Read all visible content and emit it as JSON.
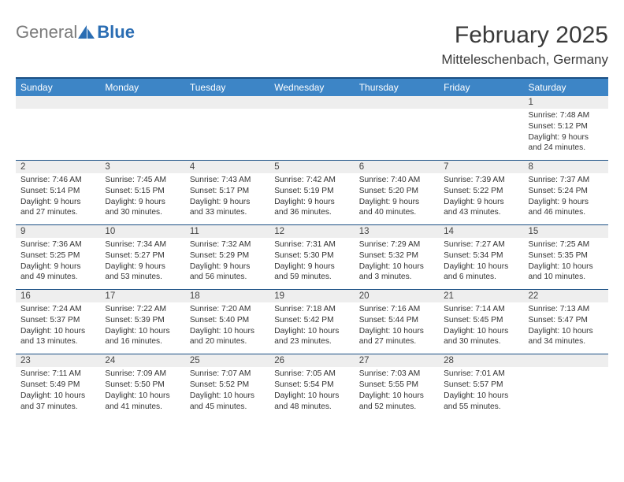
{
  "logo": {
    "text_gray": "General",
    "text_blue": "Blue",
    "icon_color": "#2a6db3"
  },
  "title": "February 2025",
  "location": "Mitteleschenbach, Germany",
  "colors": {
    "header_bg": "#3d85c6",
    "header_text": "#ffffff",
    "divider": "#1a4f84",
    "daynum_bg": "#eeeeee",
    "text": "#333333"
  },
  "day_names": [
    "Sunday",
    "Monday",
    "Tuesday",
    "Wednesday",
    "Thursday",
    "Friday",
    "Saturday"
  ],
  "weeks": [
    [
      null,
      null,
      null,
      null,
      null,
      null,
      {
        "n": "1",
        "sr": "Sunrise: 7:48 AM",
        "ss": "Sunset: 5:12 PM",
        "d1": "Daylight: 9 hours",
        "d2": "and 24 minutes."
      }
    ],
    [
      {
        "n": "2",
        "sr": "Sunrise: 7:46 AM",
        "ss": "Sunset: 5:14 PM",
        "d1": "Daylight: 9 hours",
        "d2": "and 27 minutes."
      },
      {
        "n": "3",
        "sr": "Sunrise: 7:45 AM",
        "ss": "Sunset: 5:15 PM",
        "d1": "Daylight: 9 hours",
        "d2": "and 30 minutes."
      },
      {
        "n": "4",
        "sr": "Sunrise: 7:43 AM",
        "ss": "Sunset: 5:17 PM",
        "d1": "Daylight: 9 hours",
        "d2": "and 33 minutes."
      },
      {
        "n": "5",
        "sr": "Sunrise: 7:42 AM",
        "ss": "Sunset: 5:19 PM",
        "d1": "Daylight: 9 hours",
        "d2": "and 36 minutes."
      },
      {
        "n": "6",
        "sr": "Sunrise: 7:40 AM",
        "ss": "Sunset: 5:20 PM",
        "d1": "Daylight: 9 hours",
        "d2": "and 40 minutes."
      },
      {
        "n": "7",
        "sr": "Sunrise: 7:39 AM",
        "ss": "Sunset: 5:22 PM",
        "d1": "Daylight: 9 hours",
        "d2": "and 43 minutes."
      },
      {
        "n": "8",
        "sr": "Sunrise: 7:37 AM",
        "ss": "Sunset: 5:24 PM",
        "d1": "Daylight: 9 hours",
        "d2": "and 46 minutes."
      }
    ],
    [
      {
        "n": "9",
        "sr": "Sunrise: 7:36 AM",
        "ss": "Sunset: 5:25 PM",
        "d1": "Daylight: 9 hours",
        "d2": "and 49 minutes."
      },
      {
        "n": "10",
        "sr": "Sunrise: 7:34 AM",
        "ss": "Sunset: 5:27 PM",
        "d1": "Daylight: 9 hours",
        "d2": "and 53 minutes."
      },
      {
        "n": "11",
        "sr": "Sunrise: 7:32 AM",
        "ss": "Sunset: 5:29 PM",
        "d1": "Daylight: 9 hours",
        "d2": "and 56 minutes."
      },
      {
        "n": "12",
        "sr": "Sunrise: 7:31 AM",
        "ss": "Sunset: 5:30 PM",
        "d1": "Daylight: 9 hours",
        "d2": "and 59 minutes."
      },
      {
        "n": "13",
        "sr": "Sunrise: 7:29 AM",
        "ss": "Sunset: 5:32 PM",
        "d1": "Daylight: 10 hours",
        "d2": "and 3 minutes."
      },
      {
        "n": "14",
        "sr": "Sunrise: 7:27 AM",
        "ss": "Sunset: 5:34 PM",
        "d1": "Daylight: 10 hours",
        "d2": "and 6 minutes."
      },
      {
        "n": "15",
        "sr": "Sunrise: 7:25 AM",
        "ss": "Sunset: 5:35 PM",
        "d1": "Daylight: 10 hours",
        "d2": "and 10 minutes."
      }
    ],
    [
      {
        "n": "16",
        "sr": "Sunrise: 7:24 AM",
        "ss": "Sunset: 5:37 PM",
        "d1": "Daylight: 10 hours",
        "d2": "and 13 minutes."
      },
      {
        "n": "17",
        "sr": "Sunrise: 7:22 AM",
        "ss": "Sunset: 5:39 PM",
        "d1": "Daylight: 10 hours",
        "d2": "and 16 minutes."
      },
      {
        "n": "18",
        "sr": "Sunrise: 7:20 AM",
        "ss": "Sunset: 5:40 PM",
        "d1": "Daylight: 10 hours",
        "d2": "and 20 minutes."
      },
      {
        "n": "19",
        "sr": "Sunrise: 7:18 AM",
        "ss": "Sunset: 5:42 PM",
        "d1": "Daylight: 10 hours",
        "d2": "and 23 minutes."
      },
      {
        "n": "20",
        "sr": "Sunrise: 7:16 AM",
        "ss": "Sunset: 5:44 PM",
        "d1": "Daylight: 10 hours",
        "d2": "and 27 minutes."
      },
      {
        "n": "21",
        "sr": "Sunrise: 7:14 AM",
        "ss": "Sunset: 5:45 PM",
        "d1": "Daylight: 10 hours",
        "d2": "and 30 minutes."
      },
      {
        "n": "22",
        "sr": "Sunrise: 7:13 AM",
        "ss": "Sunset: 5:47 PM",
        "d1": "Daylight: 10 hours",
        "d2": "and 34 minutes."
      }
    ],
    [
      {
        "n": "23",
        "sr": "Sunrise: 7:11 AM",
        "ss": "Sunset: 5:49 PM",
        "d1": "Daylight: 10 hours",
        "d2": "and 37 minutes."
      },
      {
        "n": "24",
        "sr": "Sunrise: 7:09 AM",
        "ss": "Sunset: 5:50 PM",
        "d1": "Daylight: 10 hours",
        "d2": "and 41 minutes."
      },
      {
        "n": "25",
        "sr": "Sunrise: 7:07 AM",
        "ss": "Sunset: 5:52 PM",
        "d1": "Daylight: 10 hours",
        "d2": "and 45 minutes."
      },
      {
        "n": "26",
        "sr": "Sunrise: 7:05 AM",
        "ss": "Sunset: 5:54 PM",
        "d1": "Daylight: 10 hours",
        "d2": "and 48 minutes."
      },
      {
        "n": "27",
        "sr": "Sunrise: 7:03 AM",
        "ss": "Sunset: 5:55 PM",
        "d1": "Daylight: 10 hours",
        "d2": "and 52 minutes."
      },
      {
        "n": "28",
        "sr": "Sunrise: 7:01 AM",
        "ss": "Sunset: 5:57 PM",
        "d1": "Daylight: 10 hours",
        "d2": "and 55 minutes."
      },
      null
    ]
  ]
}
